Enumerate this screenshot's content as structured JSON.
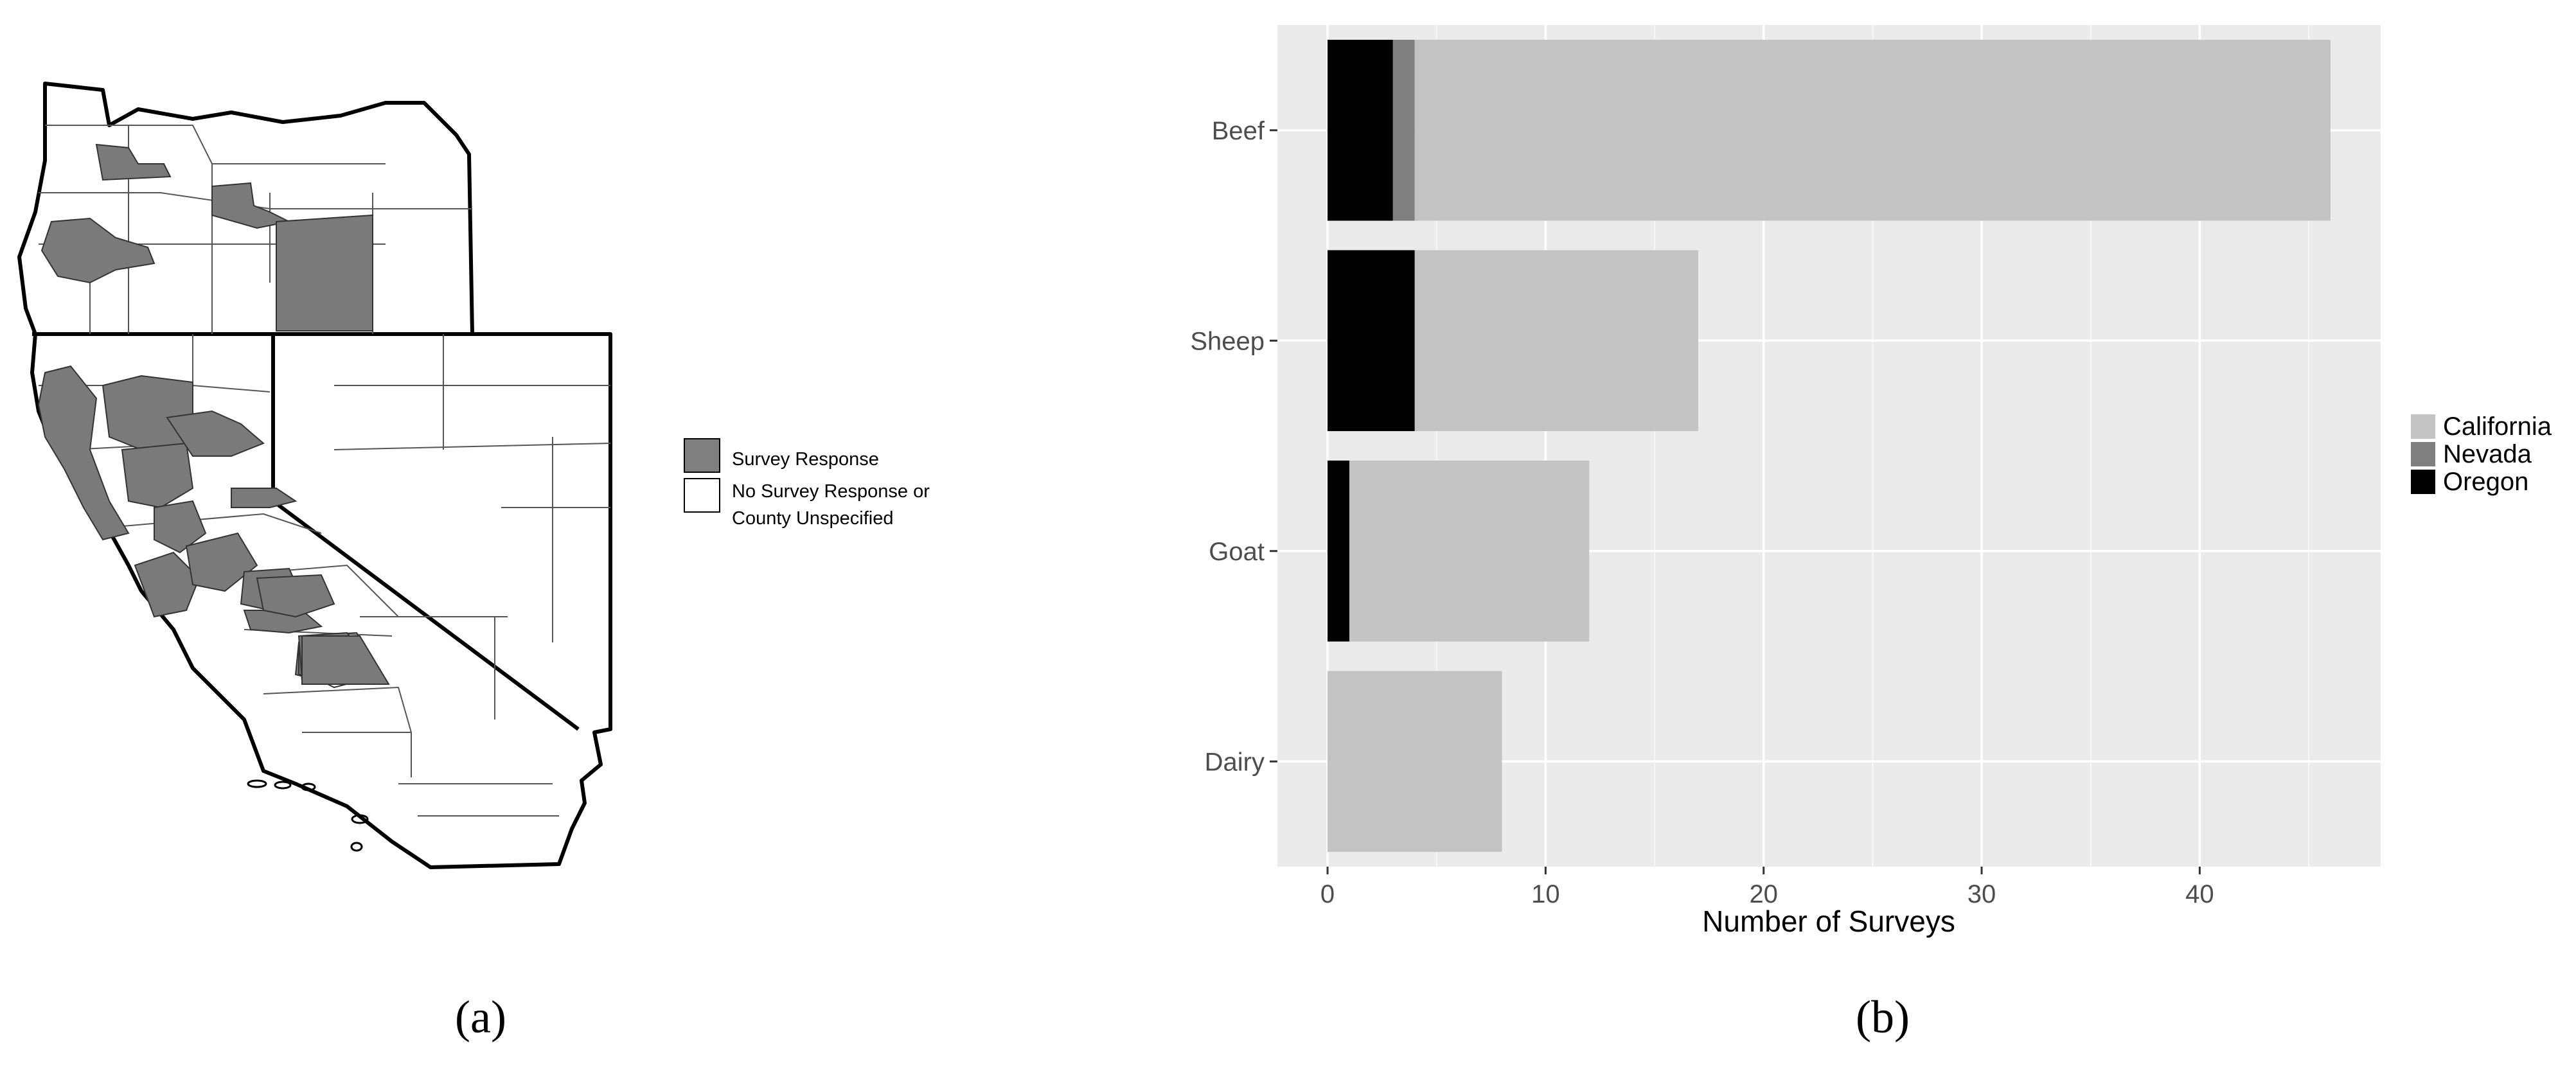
{
  "panel_a": {
    "caption": "(a)",
    "legend": [
      {
        "label": "Survey Response",
        "color": "#7f7f7f"
      },
      {
        "label_line1": "No Survey Response or",
        "label_line2": "County Unspecified",
        "color": "#ffffff"
      }
    ]
  },
  "panel_b": {
    "caption": "(b)"
  },
  "chart_data": {
    "type": "bar",
    "orientation": "horizontal",
    "stacked": true,
    "categories": [
      "Beef",
      "Sheep",
      "Goat",
      "Dairy"
    ],
    "series": [
      {
        "name": "Oregon",
        "color": "#000000",
        "values": [
          3,
          4,
          1,
          0
        ]
      },
      {
        "name": "Nevada",
        "color": "#7f7f7f",
        "values": [
          1,
          0,
          0,
          0
        ]
      },
      {
        "name": "California",
        "color": "#c3c3c3",
        "values": [
          42,
          13,
          11,
          8
        ]
      }
    ],
    "legend_order": [
      "California",
      "Nevada",
      "Oregon"
    ],
    "legend_position": "right",
    "xlabel": "Number of Surveys",
    "ylabel": "",
    "xlim": [
      -2.3,
      48.3
    ],
    "xticks": [
      0,
      10,
      20,
      30,
      40
    ],
    "minor_xticks": [
      5,
      15,
      25,
      35,
      45
    ],
    "grid": true,
    "panel_background": "#ebebeb"
  }
}
